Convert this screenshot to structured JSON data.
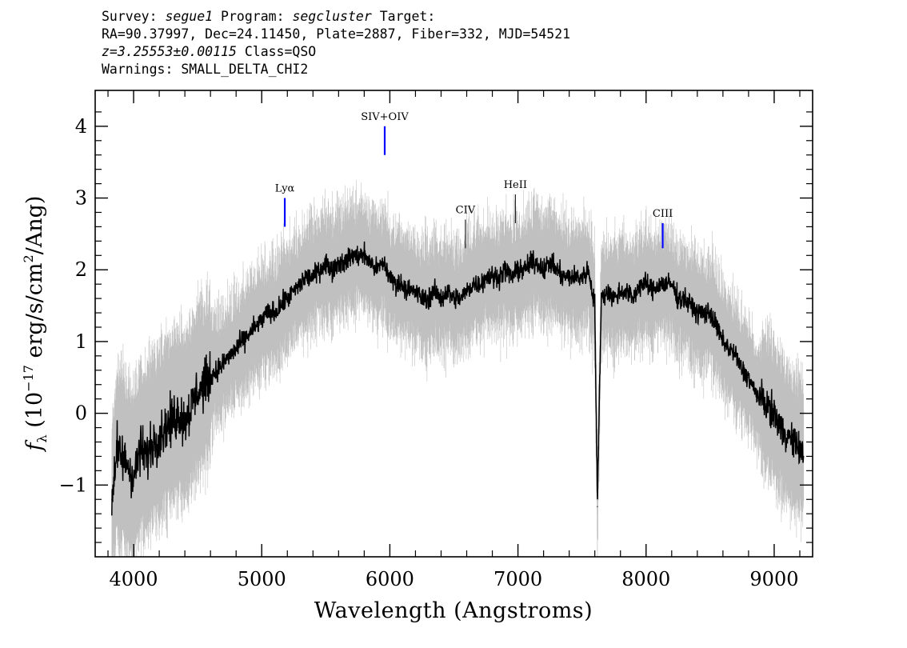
{
  "header": {
    "line1": {
      "survey_label": "Survey: ",
      "survey": "segue1",
      "program_label": " Program: ",
      "program": "segcluster",
      "target_label": " Target:"
    },
    "line2": "RA=90.37997, Dec=24.11450, Plate=2887, Fiber=332, MJD=54521",
    "line3": {
      "z": "z=3.25553±0.00115",
      "class": " Class=QSO"
    },
    "line4": "Warnings: SMALL_DELTA_CHI2"
  },
  "colors": {
    "flux": "#000000",
    "error_band": "#c0c0c0",
    "line_marker_blue": "#0000ff",
    "line_marker_dark": "#222222"
  },
  "chart_data": {
    "type": "line",
    "xlabel": "Wavelength (Angstroms)",
    "ylabel": "f_λ (10^-17 erg/s/cm^2/Ang)",
    "ylabel_parts": {
      "f": "f",
      "sub": "λ",
      "pre": " (10",
      "exp1": "−17",
      "mid": " erg/s/cm",
      "exp2": "2",
      "post": "/Ang)"
    },
    "xlim": [
      3700,
      9300
    ],
    "ylim": [
      -2.0,
      4.5
    ],
    "x_ticks": [
      4000,
      5000,
      6000,
      7000,
      8000,
      9000
    ],
    "x_tick_labels": [
      "4000",
      "5000",
      "6000",
      "7000",
      "8000",
      "9000"
    ],
    "y_ticks": [
      -1,
      0,
      1,
      2,
      3,
      4
    ],
    "y_tick_labels": [
      "−1",
      "0",
      "1",
      "2",
      "3",
      "4"
    ],
    "series": [
      {
        "x": [
          3830,
          3870,
          3900,
          3950,
          4000,
          4050,
          4100,
          4150,
          4200,
          4250,
          4300,
          4350,
          4400,
          4450,
          4500,
          4550,
          4600,
          4650,
          4700,
          4750,
          4800,
          4850,
          4900,
          4950,
          5000,
          5050,
          5100,
          5150,
          5200,
          5250,
          5300,
          5350,
          5400,
          5450,
          5500,
          5550,
          5600,
          5650,
          5700,
          5750,
          5800,
          5850,
          5900,
          5950,
          6000,
          6050,
          6100,
          6150,
          6200,
          6250,
          6300,
          6350,
          6400,
          6450,
          6500,
          6550,
          6600,
          6650,
          6700,
          6750,
          6800,
          6850,
          6900,
          6950,
          7000,
          7050,
          7100,
          7150,
          7200,
          7250,
          7300,
          7350,
          7400,
          7450,
          7500,
          7550,
          7600,
          7620,
          7650,
          7700,
          7750,
          7800,
          7850,
          7900,
          7950,
          8000,
          8050,
          8100,
          8150,
          8200,
          8250,
          8300,
          8350,
          8400,
          8450,
          8500,
          8550,
          8600,
          8650,
          8700,
          8750,
          8800,
          8850,
          8900,
          8950,
          9000,
          9050,
          9100,
          9150,
          9200,
          9230
        ],
        "y": [
          -1.2,
          -0.5,
          -0.6,
          -0.7,
          -0.9,
          -0.5,
          -0.6,
          -0.4,
          -0.3,
          -0.2,
          -0.1,
          0.0,
          -0.1,
          0.1,
          0.3,
          0.4,
          0.5,
          0.6,
          0.7,
          0.8,
          0.9,
          1.0,
          1.1,
          1.2,
          1.3,
          1.4,
          1.4,
          1.5,
          1.6,
          1.7,
          1.8,
          1.9,
          1.9,
          2.0,
          2.1,
          2.0,
          2.1,
          2.1,
          2.2,
          2.2,
          2.2,
          2.1,
          2.0,
          2.1,
          1.9,
          1.8,
          1.8,
          1.7,
          1.7,
          1.6,
          1.6,
          1.7,
          1.6,
          1.7,
          1.6,
          1.6,
          1.7,
          1.8,
          1.8,
          1.9,
          1.9,
          1.9,
          2.0,
          1.9,
          2.0,
          2.0,
          2.1,
          2.1,
          2.0,
          2.1,
          2.0,
          1.9,
          1.9,
          1.9,
          1.9,
          2.0,
          1.5,
          -1.3,
          1.6,
          1.7,
          1.6,
          1.7,
          1.7,
          1.6,
          1.8,
          1.8,
          1.7,
          1.8,
          1.8,
          1.8,
          1.6,
          1.6,
          1.5,
          1.4,
          1.4,
          1.4,
          1.2,
          1.0,
          0.9,
          0.8,
          0.6,
          0.5,
          0.3,
          0.2,
          0.1,
          0.0,
          -0.2,
          -0.3,
          -0.4,
          -0.5,
          -0.6
        ]
      }
    ],
    "lines": [
      {
        "label": "Lyα",
        "x": 5180,
        "y0": 2.6,
        "y1": 3.0,
        "color": "blue"
      },
      {
        "label": "SIV+OIV",
        "x": 5960,
        "y0": 3.6,
        "y1": 4.0,
        "color": "blue"
      },
      {
        "label": "CIV",
        "x": 6590,
        "y0": 2.3,
        "y1": 2.7,
        "color": "dark"
      },
      {
        "label": "HeII",
        "x": 6980,
        "y0": 2.65,
        "y1": 3.05,
        "color": "dark"
      },
      {
        "label": "CIII",
        "x": 8130,
        "y0": 2.3,
        "y1": 2.65,
        "color": "blue"
      }
    ],
    "grid": false,
    "legend": "none"
  }
}
